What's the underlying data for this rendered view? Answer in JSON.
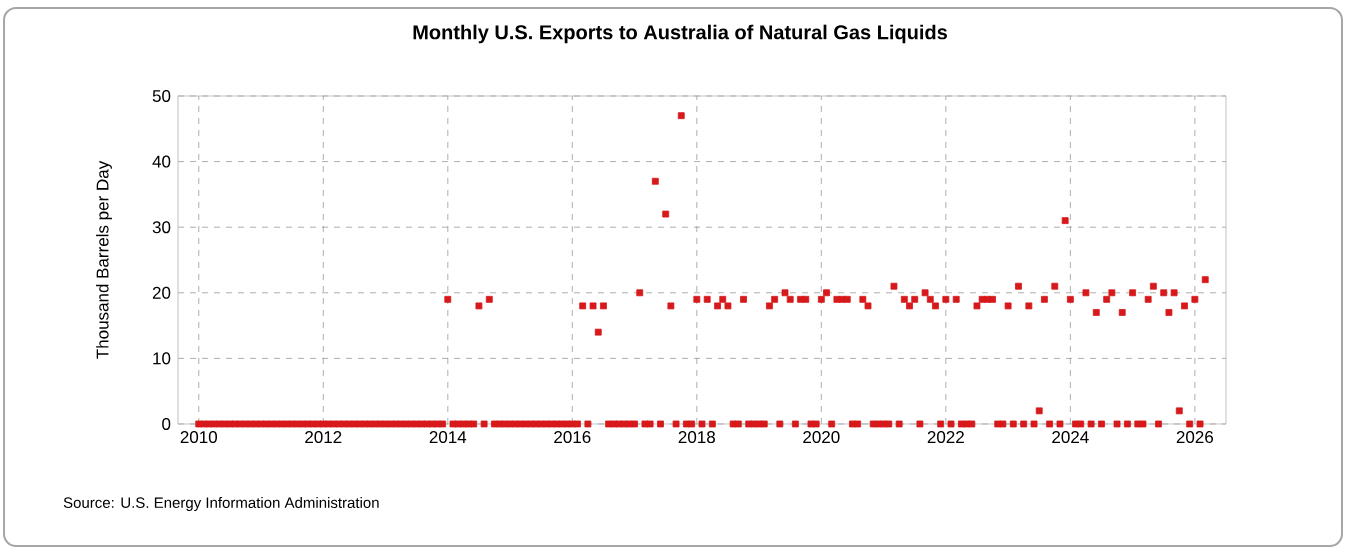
{
  "chart_data": {
    "type": "scatter",
    "title": "Monthly U.S. Exports to Australia of Natural Gas Liquids",
    "ylabel": "Thousand Barrels per Day",
    "annotations": [
      "Source: U.S. Energy Information Administration"
    ],
    "x": [
      "2010-01",
      "2010-02",
      "2010-03",
      "2010-04",
      "2010-05",
      "2010-06",
      "2010-07",
      "2010-08",
      "2010-09",
      "2010-10",
      "2010-11",
      "2010-12",
      "2011-01",
      "2011-02",
      "2011-03",
      "2011-04",
      "2011-05",
      "2011-06",
      "2011-07",
      "2011-08",
      "2011-09",
      "2011-10",
      "2011-11",
      "2011-12",
      "2012-01",
      "2012-02",
      "2012-03",
      "2012-04",
      "2012-05",
      "2012-06",
      "2012-07",
      "2012-08",
      "2012-09",
      "2012-10",
      "2012-11",
      "2012-12",
      "2013-01",
      "2013-02",
      "2013-03",
      "2013-04",
      "2013-05",
      "2013-06",
      "2013-07",
      "2013-08",
      "2013-09",
      "2013-10",
      "2013-11",
      "2013-12",
      "2014-01",
      "2014-02",
      "2014-03",
      "2014-04",
      "2014-05",
      "2014-06",
      "2014-07",
      "2014-08",
      "2014-09",
      "2014-10",
      "2014-11",
      "2014-12",
      "2015-01",
      "2015-02",
      "2015-03",
      "2015-04",
      "2015-05",
      "2015-06",
      "2015-07",
      "2015-08",
      "2015-09",
      "2015-10",
      "2015-11",
      "2015-12",
      "2016-01",
      "2016-02",
      "2016-03",
      "2016-04",
      "2016-05",
      "2016-06",
      "2016-07",
      "2016-08",
      "2016-09",
      "2016-10",
      "2016-11",
      "2016-12",
      "2017-01",
      "2017-02",
      "2017-03",
      "2017-04",
      "2017-05",
      "2017-06",
      "2017-07",
      "2017-08",
      "2017-09",
      "2017-10",
      "2017-11",
      "2017-12",
      "2018-01",
      "2018-02",
      "2018-03",
      "2018-04",
      "2018-05",
      "2018-06",
      "2018-07",
      "2018-08",
      "2018-09",
      "2018-10",
      "2018-11",
      "2018-12",
      "2019-01",
      "2019-02",
      "2019-03",
      "2019-04",
      "2019-05",
      "2019-06",
      "2019-07",
      "2019-08",
      "2019-09",
      "2019-10",
      "2019-11",
      "2019-12",
      "2020-01",
      "2020-02",
      "2020-03",
      "2020-04",
      "2020-05",
      "2020-06",
      "2020-07",
      "2020-08",
      "2020-09",
      "2020-10",
      "2020-11",
      "2020-12",
      "2021-01",
      "2021-02",
      "2021-03",
      "2021-04",
      "2021-05",
      "2021-06",
      "2021-07",
      "2021-08",
      "2021-09",
      "2021-10",
      "2021-11",
      "2021-12",
      "2022-01",
      "2022-02",
      "2022-03",
      "2022-04",
      "2022-05",
      "2022-06",
      "2022-07",
      "2022-08",
      "2022-09",
      "2022-10",
      "2022-11",
      "2022-12",
      "2023-01",
      "2023-02",
      "2023-03",
      "2023-04",
      "2023-05",
      "2023-06",
      "2023-07",
      "2023-08",
      "2023-09",
      "2023-10",
      "2023-11",
      "2023-12",
      "2024-01",
      "2024-02",
      "2024-03",
      "2024-04",
      "2024-05",
      "2024-06",
      "2024-07",
      "2024-08",
      "2024-09",
      "2024-10",
      "2024-11",
      "2024-12",
      "2025-01",
      "2025-02",
      "2025-03",
      "2025-04",
      "2025-05",
      "2025-06",
      "2025-07",
      "2025-08",
      "2025-09",
      "2025-10",
      "2025-11",
      "2025-12",
      "2026-01",
      "2026-02",
      "2026-03"
    ],
    "values": [
      0,
      0,
      0,
      0,
      0,
      0,
      0,
      0,
      0,
      0,
      0,
      0,
      0,
      0,
      0,
      0,
      0,
      0,
      0,
      0,
      0,
      0,
      0,
      0,
      0,
      0,
      0,
      0,
      0,
      0,
      0,
      0,
      0,
      0,
      0,
      0,
      0,
      0,
      0,
      0,
      0,
      0,
      0,
      0,
      0,
      0,
      0,
      0,
      19,
      0,
      0,
      0,
      0,
      0,
      18,
      0,
      19,
      0,
      0,
      0,
      0,
      0,
      0,
      0,
      0,
      0,
      0,
      0,
      0,
      0,
      0,
      0,
      0,
      0,
      18,
      0,
      18,
      14,
      18,
      0,
      0,
      0,
      0,
      0,
      0,
      20,
      0,
      0,
      37,
      0,
      32,
      18,
      0,
      47,
      0,
      0,
      19,
      0,
      19,
      0,
      18,
      19,
      18,
      0,
      0,
      19,
      0,
      0,
      0,
      0,
      18,
      19,
      0,
      20,
      19,
      0,
      19,
      19,
      0,
      0,
      19,
      20,
      0,
      19,
      19,
      19,
      0,
      0,
      19,
      18,
      0,
      0,
      0,
      0,
      21,
      0,
      19,
      18,
      19,
      0,
      20,
      19,
      18,
      0,
      19,
      0,
      19,
      0,
      0,
      0,
      18,
      19,
      19,
      19,
      0,
      0,
      18,
      0,
      21,
      0,
      18,
      0,
      2,
      19,
      0,
      21,
      0,
      31,
      19,
      0,
      0,
      20,
      0,
      17,
      0,
      19,
      20,
      0,
      17,
      0,
      20,
      0,
      0,
      19,
      21,
      0,
      20,
      17,
      20,
      2,
      18,
      0,
      19,
      0,
      22
    ],
    "color": "#d7191c",
    "marker": "square",
    "xlim": [
      "2009-09",
      "2026-07"
    ],
    "xticks": [
      "2010",
      "2012",
      "2014",
      "2016",
      "2018",
      "2020",
      "2022",
      "2024",
      "2026"
    ],
    "ylim": [
      0,
      50
    ],
    "yticks": [
      0,
      10,
      20,
      30,
      40,
      50
    ],
    "grid": true
  }
}
